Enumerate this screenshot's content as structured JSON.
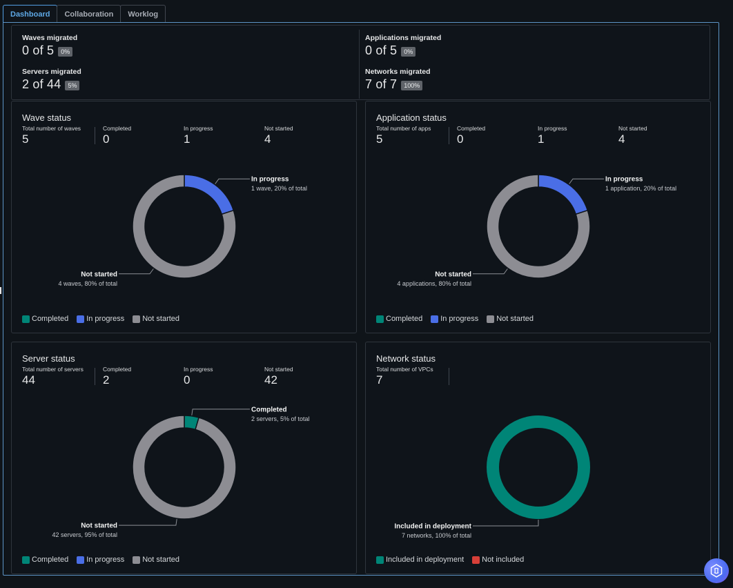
{
  "tabs": [
    {
      "label": "Dashboard",
      "active": true
    },
    {
      "label": "Collaboration",
      "active": false
    },
    {
      "label": "Worklog",
      "active": false
    }
  ],
  "summary": {
    "waves": {
      "label": "Waves migrated",
      "value": "0 of 5",
      "badge": "0%"
    },
    "servers": {
      "label": "Servers migrated",
      "value": "2 of 44",
      "badge": "5%"
    },
    "applications": {
      "label": "Applications migrated",
      "value": "0 of 5",
      "badge": "0%"
    },
    "networks": {
      "label": "Networks migrated",
      "value": "7 of 7",
      "badge": "100%"
    }
  },
  "colors": {
    "completed": "#008577",
    "in_progress": "#4a6ee6",
    "not_started": "#8d8d93",
    "not_included": "#d63f38"
  },
  "wave_status": {
    "title": "Wave status",
    "stats": [
      {
        "label": "Total number of waves",
        "value": "5"
      },
      {
        "label": "Completed",
        "value": "0"
      },
      {
        "label": "In progress",
        "value": "1"
      },
      {
        "label": "Not started",
        "value": "4"
      }
    ],
    "legend": [
      "Completed",
      "In progress",
      "Not started"
    ]
  },
  "application_status": {
    "title": "Application status",
    "stats": [
      {
        "label": "Total number of apps",
        "value": "5"
      },
      {
        "label": "Completed",
        "value": "0"
      },
      {
        "label": "In progress",
        "value": "1"
      },
      {
        "label": "Not started",
        "value": "4"
      }
    ],
    "legend": [
      "Completed",
      "In progress",
      "Not started"
    ]
  },
  "server_status": {
    "title": "Server status",
    "stats": [
      {
        "label": "Total number of servers",
        "value": "44"
      },
      {
        "label": "Completed",
        "value": "2"
      },
      {
        "label": "In progress",
        "value": "0"
      },
      {
        "label": "Not started",
        "value": "42"
      }
    ],
    "legend": [
      "Completed",
      "In progress",
      "Not started"
    ]
  },
  "network_status": {
    "title": "Network status",
    "stats": [
      {
        "label": "Total number of VPCs",
        "value": "7"
      }
    ],
    "legend": [
      "Included in deployment",
      "Not included"
    ]
  },
  "chart_data": [
    {
      "type": "pie",
      "title": "Wave status",
      "categories": [
        "Completed",
        "In progress",
        "Not started"
      ],
      "values": [
        0,
        1,
        4
      ],
      "callouts": [
        {
          "category": "In progress",
          "title": "In progress",
          "detail": "1 wave, 20% of total"
        },
        {
          "category": "Not started",
          "title": "Not started",
          "detail": "4 waves, 80% of total"
        }
      ],
      "legend": "bottom-left"
    },
    {
      "type": "pie",
      "title": "Application status",
      "categories": [
        "Completed",
        "In progress",
        "Not started"
      ],
      "values": [
        0,
        1,
        4
      ],
      "callouts": [
        {
          "category": "In progress",
          "title": "In progress",
          "detail": "1 application, 20% of total"
        },
        {
          "category": "Not started",
          "title": "Not started",
          "detail": "4 applications, 80% of total"
        }
      ],
      "legend": "bottom-left"
    },
    {
      "type": "pie",
      "title": "Server status",
      "categories": [
        "Completed",
        "In progress",
        "Not started"
      ],
      "values": [
        2,
        0,
        42
      ],
      "callouts": [
        {
          "category": "Completed",
          "title": "Completed",
          "detail": "2 servers, 5% of total"
        },
        {
          "category": "Not started",
          "title": "Not started",
          "detail": "42 servers, 95% of total"
        }
      ],
      "legend": "bottom-left"
    },
    {
      "type": "pie",
      "title": "Network status",
      "categories": [
        "Included in deployment",
        "Not included"
      ],
      "values": [
        7,
        0
      ],
      "callouts": [
        {
          "category": "Included in deployment",
          "title": "Included in deployment",
          "detail": "7 networks, 100% of total"
        }
      ],
      "legend": "bottom-left"
    }
  ]
}
